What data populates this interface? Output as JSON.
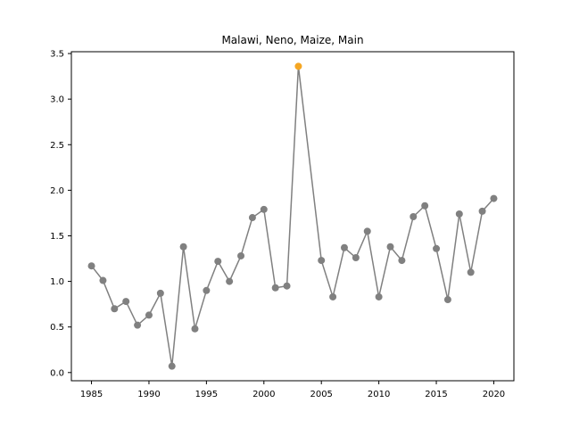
{
  "chart_data": {
    "type": "line",
    "title": "Malawi, Neno, Maize, Main",
    "xlabel": "",
    "ylabel": "",
    "xlim": [
      1983.25,
      2021.75
    ],
    "ylim": [
      -0.09,
      3.52
    ],
    "xticks": [
      1985,
      1990,
      1995,
      2000,
      2005,
      2010,
      2015,
      2020
    ],
    "yticks": [
      0.0,
      0.5,
      1.0,
      1.5,
      2.0,
      2.5,
      3.0,
      3.5
    ],
    "yticklabels": [
      "0.0",
      "0.5",
      "1.0",
      "1.5",
      "2.0",
      "2.5",
      "3.0",
      "3.5"
    ],
    "grid": false,
    "series": [
      {
        "line_color": "#808080",
        "marker_color": "#808080",
        "x": [
          1985,
          1986,
          1987,
          1988,
          1989,
          1990,
          1991,
          1992,
          1993,
          1994,
          1995,
          1996,
          1997,
          1998,
          1999,
          2000,
          2001,
          2002,
          2003,
          2005,
          2006,
          2007,
          2008,
          2009,
          2010,
          2011,
          2012,
          2013,
          2014,
          2015,
          2016,
          2017,
          2018,
          2019,
          2020
        ],
        "values": [
          1.17,
          1.01,
          0.7,
          0.78,
          0.52,
          0.63,
          0.87,
          0.07,
          1.38,
          0.48,
          0.9,
          1.22,
          1.0,
          1.28,
          1.7,
          1.79,
          0.93,
          0.95,
          3.36,
          1.23,
          0.83,
          1.37,
          1.26,
          1.55,
          0.83,
          1.38,
          1.23,
          1.71,
          1.83,
          1.36,
          0.8,
          1.74,
          1.1,
          1.77,
          1.91
        ]
      }
    ],
    "highlight": {
      "x": 2003,
      "value": 3.36,
      "color": "#f5a623"
    }
  }
}
